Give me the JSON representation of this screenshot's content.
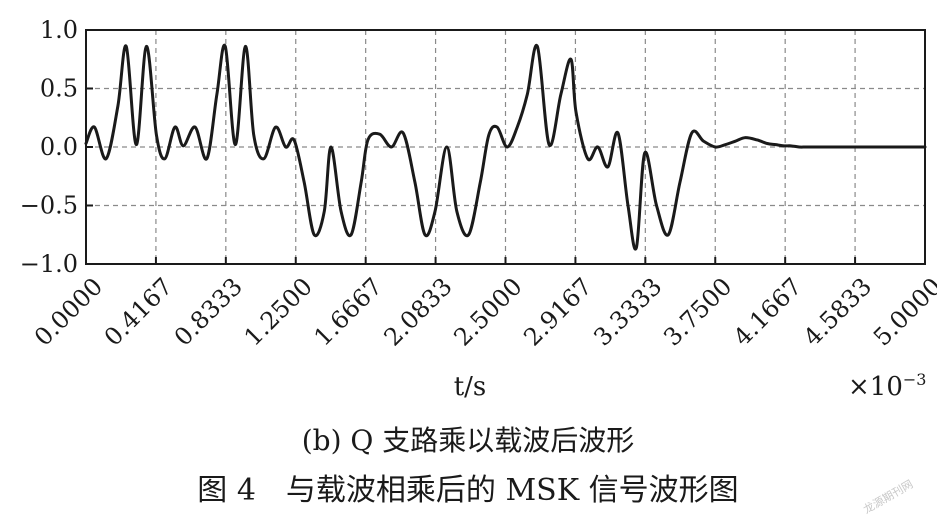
{
  "chart_data": {
    "type": "line",
    "xlabel": "t/s",
    "x_multiplier": "×10",
    "x_multiplier_exp": "−3",
    "xlim": [
      0,
      5.0
    ],
    "ylim": [
      -1.0,
      1.0
    ],
    "x_ticks": [
      "0.0000",
      "0.4167",
      "0.8333",
      "1.2500",
      "1.6667",
      "2.0833",
      "2.5000",
      "2.9167",
      "3.3333",
      "3.7500",
      "4.1667",
      "4.5833",
      "5.0000"
    ],
    "y_ticks": [
      "1.0",
      "0.5",
      "0.0",
      "−0.5",
      "−1.0"
    ],
    "grid": true,
    "series": [
      {
        "color": "#1a1a1a",
        "x": [
          0,
          0.05,
          0.12,
          0.19,
          0.24,
          0.3,
          0.36,
          0.42,
          0.47,
          0.53,
          0.58,
          0.65,
          0.72,
          0.78,
          0.83,
          0.89,
          0.95,
          1.0,
          1.06,
          1.13,
          1.19,
          1.24,
          1.3,
          1.36,
          1.42,
          1.46,
          1.52,
          1.58,
          1.64,
          1.68,
          1.75,
          1.82,
          1.89,
          1.96,
          2.02,
          2.08,
          2.15,
          2.21,
          2.28,
          2.35,
          2.4,
          2.45,
          2.51,
          2.57,
          2.63,
          2.69,
          2.76,
          2.83,
          2.89,
          2.92,
          2.99,
          3.05,
          3.11,
          3.17,
          3.23,
          3.28,
          3.33,
          3.4,
          3.47,
          3.54,
          3.61,
          3.68,
          3.75,
          3.81,
          3.87,
          3.93,
          4.0,
          4.06,
          4.11,
          4.16,
          4.2,
          4.25,
          4.29,
          4.35,
          4.4,
          4.46,
          4.52,
          4.58,
          4.64,
          4.71,
          4.77,
          4.84,
          4.9,
          4.95,
          5.0
        ],
        "y": [
          0.03,
          0.17,
          -0.1,
          0.35,
          0.86,
          0.02,
          0.86,
          0.1,
          -0.1,
          0.17,
          0.01,
          0.17,
          -0.1,
          0.45,
          0.86,
          0.02,
          0.86,
          0.1,
          -0.1,
          0.17,
          0.0,
          0.06,
          -0.3,
          -0.75,
          -0.55,
          0.0,
          -0.55,
          -0.75,
          -0.3,
          0.06,
          0.11,
          0.0,
          0.12,
          -0.3,
          -0.75,
          -0.55,
          0.0,
          -0.55,
          -0.75,
          -0.3,
          0.1,
          0.17,
          0.0,
          0.17,
          0.45,
          0.86,
          0.02,
          0.45,
          0.75,
          0.3,
          -0.1,
          0.0,
          -0.17,
          0.12,
          -0.5,
          -0.86,
          -0.05,
          -0.5,
          -0.75,
          -0.3,
          0.12,
          0.05,
          0.0,
          0.02,
          0.05,
          0.08,
          0.06,
          0.03,
          0.02,
          0.01,
          0.01,
          0.0,
          0.0,
          0.0,
          0.0,
          0.0,
          0.0,
          0.0,
          0.0,
          0.0,
          0.0,
          0.0,
          0.0,
          0.0,
          0.0
        ]
      }
    ]
  },
  "caption_sub": "(b) Q 支路乘以载波后波形",
  "caption_main": "图 4　与载波相乘后的 MSK 信号波形图",
  "watermark": "龙源期刊网"
}
